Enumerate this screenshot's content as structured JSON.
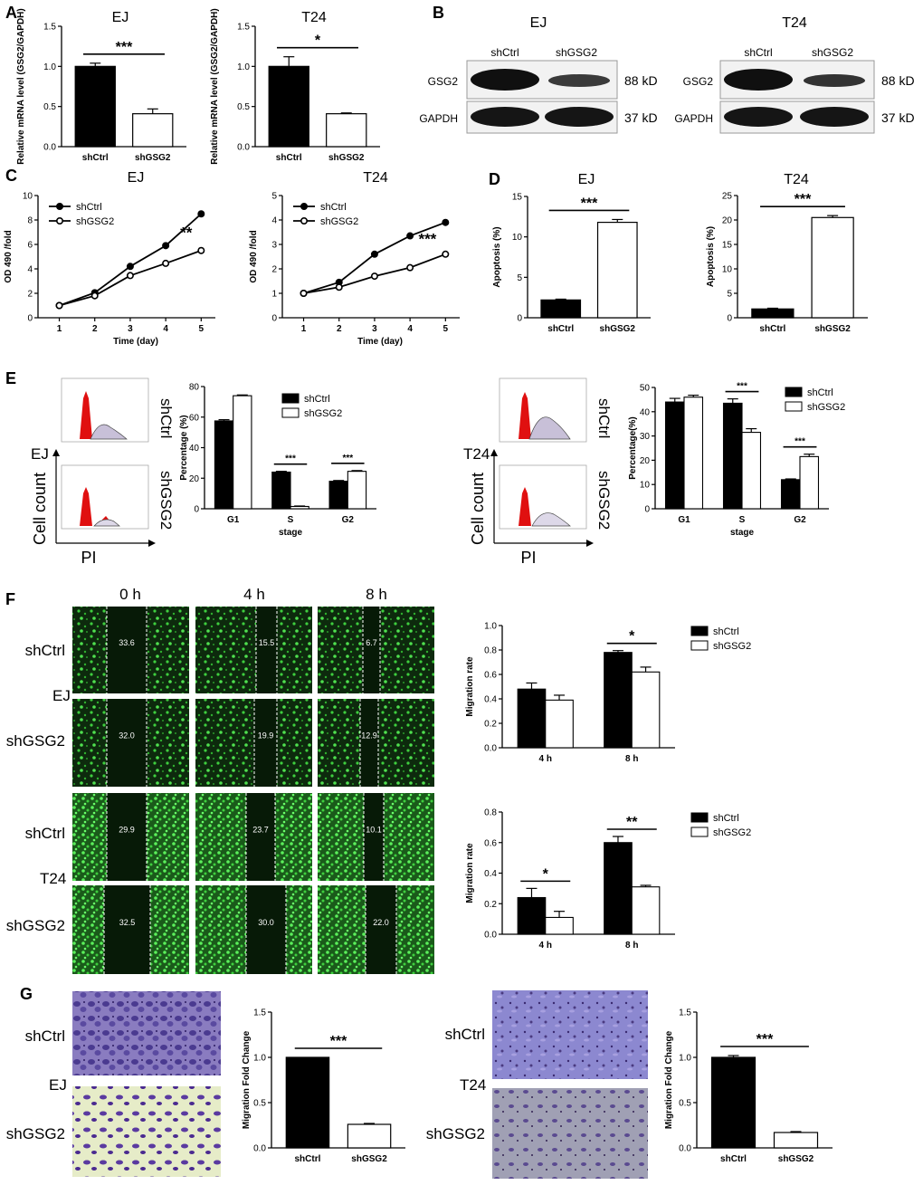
{
  "panel_letters": [
    "A",
    "B",
    "C",
    "D",
    "E",
    "F",
    "G"
  ],
  "cell_lines": [
    "EJ",
    "T24"
  ],
  "groups": [
    "shCtrl",
    "shGSG2"
  ],
  "panel_b": {
    "titles": [
      "EJ",
      "T24"
    ],
    "lanes": [
      "shCtrl",
      "shGSG2"
    ],
    "proteins": [
      "GSG2",
      "GAPDH"
    ],
    "sizes": [
      "88 kD",
      "37 kD"
    ]
  },
  "panel_e": {
    "row_labels": [
      "shCtrl",
      "shGSG2"
    ],
    "y_label": "Cell count",
    "x_label": "PI",
    "cell_labels": [
      "EJ",
      "T24"
    ]
  },
  "panel_f": {
    "times": [
      "0 h",
      "4 h",
      "8 h"
    ],
    "rows": [
      {
        "group": "shCtrl",
        "line": "EJ",
        "values": [
          "33.6",
          "15.5",
          "6.7"
        ]
      },
      {
        "group": "shGSG2",
        "line": "EJ",
        "values": [
          "32.0",
          "19.9",
          "12.9"
        ]
      },
      {
        "group": "shCtrl",
        "line": "T24",
        "values": [
          "29.9",
          "23.7",
          "10.1"
        ]
      },
      {
        "group": "shGSG2",
        "line": "T24",
        "values": [
          "32.5",
          "30.0",
          "22.0"
        ]
      }
    ],
    "line_labels": [
      "EJ",
      "T24"
    ]
  },
  "panel_g": {
    "row_labels": [
      "shCtrl",
      "shGSG2"
    ],
    "line_labels": [
      "EJ",
      "T24"
    ]
  },
  "colors": {
    "black_bar": "#000000",
    "white_bar": "#ffffff",
    "fluor_green": "#3ecf3e",
    "crystal_violet": "#6a5aa8",
    "peak_red": "#e01010"
  },
  "chart_data": [
    {
      "id": "A_EJ",
      "type": "bar",
      "title": "EJ",
      "categories": [
        "shCtrl",
        "shGSG2"
      ],
      "values": [
        1.0,
        0.41
      ],
      "errors": [
        0.04,
        0.06
      ],
      "ylabel": "Relative mRNA level (GSG2/GAPDH)",
      "ylim": [
        0,
        1.5
      ],
      "yticks": [
        "0.0",
        "0.5",
        "1.0",
        "1.5"
      ],
      "sig": "***"
    },
    {
      "id": "A_T24",
      "type": "bar",
      "title": "T24",
      "categories": [
        "shCtrl",
        "shGSG2"
      ],
      "values": [
        1.0,
        0.41
      ],
      "errors": [
        0.12,
        0.01
      ],
      "ylabel": "Relative mRNA level (GSG2/GAPDH)",
      "ylim": [
        0,
        1.5
      ],
      "yticks": [
        "0.0",
        "0.5",
        "1.0",
        "1.5"
      ],
      "sig": "*"
    },
    {
      "id": "C_EJ",
      "type": "line",
      "title": "EJ",
      "x": [
        1,
        2,
        3,
        4,
        5
      ],
      "series": [
        {
          "name": "shCtrl",
          "values": [
            1.0,
            2.05,
            4.2,
            5.9,
            8.5
          ]
        },
        {
          "name": "shGSG2",
          "values": [
            1.0,
            1.8,
            3.45,
            4.45,
            5.5
          ]
        }
      ],
      "xlabel": "Time (day)",
      "ylabel": "OD 490 /fold",
      "ylim": [
        0,
        10
      ],
      "yticks": [
        "0",
        "2",
        "4",
        "6",
        "8",
        "10"
      ],
      "sig": "**"
    },
    {
      "id": "C_T24",
      "type": "line",
      "title": "T24",
      "x": [
        1,
        2,
        3,
        4,
        5
      ],
      "series": [
        {
          "name": "shCtrl",
          "values": [
            1.0,
            1.45,
            2.6,
            3.35,
            3.9
          ]
        },
        {
          "name": "shGSG2",
          "values": [
            1.0,
            1.25,
            1.7,
            2.05,
            2.6
          ]
        }
      ],
      "xlabel": "Time (day)",
      "ylabel": "OD 490 /fold",
      "ylim": [
        0,
        5
      ],
      "yticks": [
        "0",
        "1",
        "2",
        "3",
        "4",
        "5"
      ],
      "sig": "***"
    },
    {
      "id": "D_EJ",
      "type": "bar",
      "title": "EJ",
      "categories": [
        "shCtrl",
        "shGSG2"
      ],
      "values": [
        2.2,
        11.8
      ],
      "errors": [
        0.1,
        0.35
      ],
      "ylabel": "Apoptosis (%)",
      "ylim": [
        0,
        15
      ],
      "yticks": [
        "0",
        "5",
        "10",
        "15"
      ],
      "sig": "***"
    },
    {
      "id": "D_T24",
      "type": "bar",
      "title": "T24",
      "categories": [
        "shCtrl",
        "shGSG2"
      ],
      "values": [
        1.8,
        20.5
      ],
      "errors": [
        0.15,
        0.4
      ],
      "ylabel": "Apoptosis (%)",
      "ylim": [
        0,
        25
      ],
      "yticks": [
        "0",
        "5",
        "10",
        "15",
        "20",
        "25"
      ],
      "sig": "***"
    },
    {
      "id": "E_EJ",
      "type": "bar",
      "categories": [
        "G1",
        "S",
        "G2"
      ],
      "series": [
        {
          "name": "shCtrl",
          "values": [
            57.5,
            24,
            18
          ],
          "errors": [
            0.8,
            0.5,
            0.5
          ]
        },
        {
          "name": "shGSG2",
          "values": [
            74,
            1.5,
            24.5
          ],
          "errors": [
            0.5,
            0.3,
            0.5
          ]
        }
      ],
      "xlabel": "stage",
      "ylabel": "Percentage (%)",
      "ylim": [
        0,
        80
      ],
      "yticks": [
        "0",
        "20",
        "40",
        "60",
        "80"
      ],
      "sig": [
        null,
        "***",
        "***"
      ]
    },
    {
      "id": "E_T24",
      "type": "bar",
      "categories": [
        "G1",
        "S",
        "G2"
      ],
      "series": [
        {
          "name": "shCtrl",
          "values": [
            44,
            43.5,
            12
          ],
          "errors": [
            1.5,
            1.8,
            0.3
          ]
        },
        {
          "name": "shGSG2",
          "values": [
            46,
            31.5,
            21.5
          ],
          "errors": [
            0.8,
            1.5,
            1.0
          ]
        }
      ],
      "xlabel": "stage",
      "ylabel": "Percentage(%)",
      "ylim": [
        0,
        50
      ],
      "yticks": [
        "0",
        "10",
        "20",
        "30",
        "40",
        "50"
      ],
      "sig": [
        null,
        "***",
        "***"
      ]
    },
    {
      "id": "F_EJ",
      "type": "bar",
      "categories": [
        "4 h",
        "8 h"
      ],
      "series": [
        {
          "name": "shCtrl",
          "values": [
            0.48,
            0.78
          ],
          "errors": [
            0.05,
            0.015
          ]
        },
        {
          "name": "shGSG2",
          "values": [
            0.39,
            0.62
          ],
          "errors": [
            0.04,
            0.04
          ]
        }
      ],
      "ylabel": "Migration rate",
      "ylim": [
        0,
        1.0
      ],
      "yticks": [
        "0.0",
        "0.2",
        "0.4",
        "0.6",
        "0.8",
        "1.0"
      ],
      "sig": [
        null,
        "*"
      ]
    },
    {
      "id": "F_T24",
      "type": "bar",
      "categories": [
        "4 h",
        "8 h"
      ],
      "series": [
        {
          "name": "shCtrl",
          "values": [
            0.24,
            0.6
          ],
          "errors": [
            0.06,
            0.04
          ]
        },
        {
          "name": "shGSG2",
          "values": [
            0.11,
            0.31
          ],
          "errors": [
            0.04,
            0.01
          ]
        }
      ],
      "ylabel": "Migration rate",
      "ylim": [
        0,
        0.8
      ],
      "yticks": [
        "0.0",
        "0.2",
        "0.4",
        "0.6",
        "0.8"
      ],
      "sig": [
        "*",
        "**"
      ]
    },
    {
      "id": "G_EJ",
      "type": "bar",
      "categories": [
        "shCtrl",
        "shGSG2"
      ],
      "values": [
        1.0,
        0.26
      ],
      "errors": [
        0.0,
        0.01
      ],
      "ylabel": "Migration Fold Change",
      "ylim": [
        0,
        1.5
      ],
      "yticks": [
        "0.0",
        "0.5",
        "1.0",
        "1.5"
      ],
      "sig": "***"
    },
    {
      "id": "G_T24",
      "type": "bar",
      "categories": [
        "shCtrl",
        "shGSG2"
      ],
      "values": [
        1.0,
        0.17
      ],
      "errors": [
        0.02,
        0.01
      ],
      "ylabel": "Migration Fold Change",
      "ylim": [
        0,
        1.5
      ],
      "yticks": [
        "0.0",
        "0.5",
        "1.0",
        "1.5"
      ],
      "sig": "***"
    }
  ]
}
